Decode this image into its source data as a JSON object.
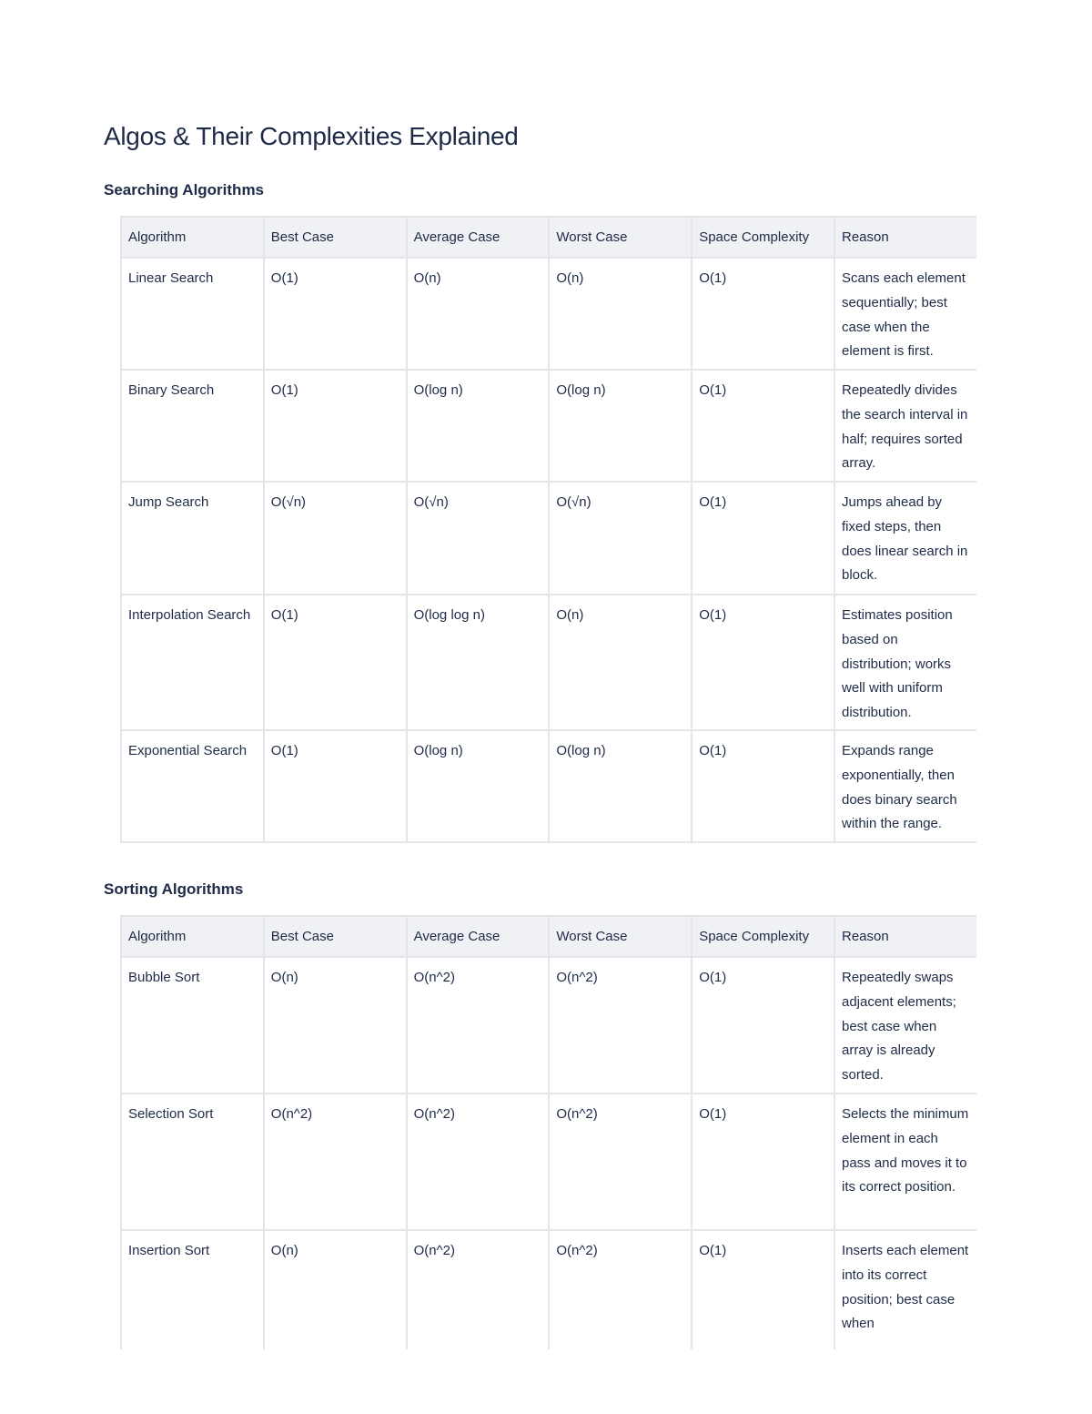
{
  "title": "Algos & Their Complexities Explained",
  "headers": [
    "Algorithm",
    "Best Case",
    "Average Case",
    "Worst Case",
    "Space Complexity",
    "Reason"
  ],
  "sections": [
    {
      "heading": "Searching Algorithms",
      "rows": [
        [
          "Linear Search",
          "O(1)",
          "O(n)",
          "O(n)",
          "O(1)",
          "Scans each element sequentially; best case when the element is first."
        ],
        [
          "Binary Search",
          "O(1)",
          "O(log n)",
          "O(log n)",
          "O(1)",
          "Repeatedly divides the search interval in half; requires sorted array."
        ],
        [
          "Jump Search",
          "O(√n)",
          "O(√n)",
          "O(√n)",
          "O(1)",
          "Jumps ahead by fixed steps, then does linear search in block."
        ],
        [
          "Interpolation Search",
          "O(1)",
          "O(log log n)",
          "O(n)",
          "O(1)",
          "Estimates position based on distribution; works well with uniform distribution."
        ],
        [
          "Exponential Search",
          "O(1)",
          "O(log n)",
          "O(log n)",
          "O(1)",
          "Expands range exponentially, then does binary search within the range."
        ]
      ]
    },
    {
      "heading": "Sorting Algorithms",
      "rows": [
        [
          "Bubble Sort",
          "O(n)",
          "O(n^2)",
          "O(n^2)",
          "O(1)",
          "Repeatedly swaps adjacent elements; best case when array is already sorted."
        ],
        [
          "Selection Sort",
          "O(n^2)",
          "O(n^2)",
          "O(n^2)",
          "O(1)",
          "Selects the minimum element in each pass and moves it to its correct position."
        ],
        [
          "Insertion Sort",
          "O(n)",
          "O(n^2)",
          "O(n^2)",
          "O(1)",
          "Inserts each element into its correct position; best case when"
        ]
      ]
    }
  ]
}
